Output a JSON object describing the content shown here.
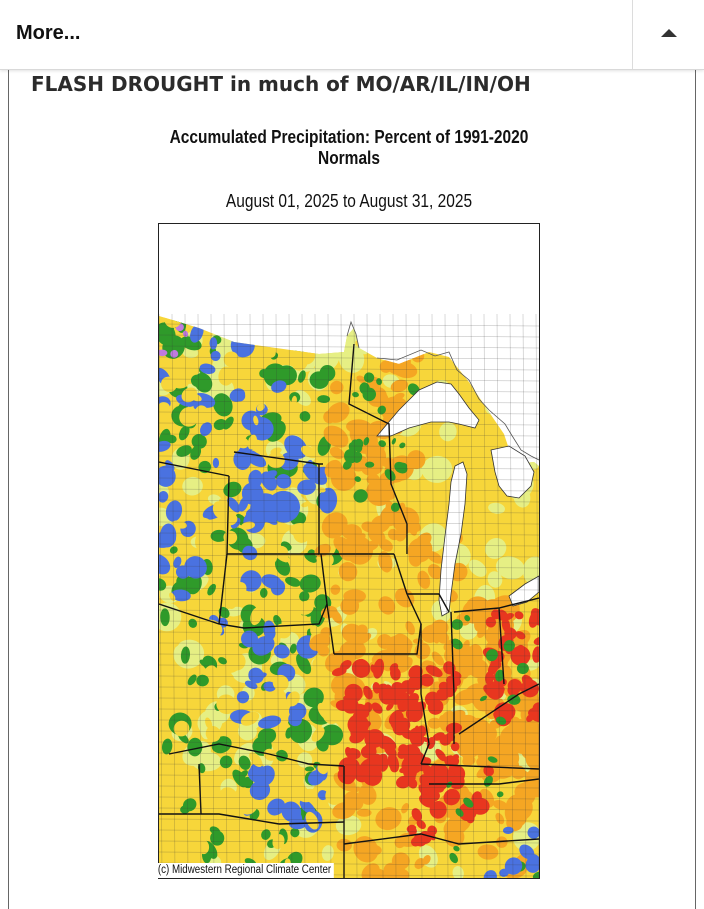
{
  "topbar": {
    "more_label": "More...",
    "toggle_icon": "caret-up-icon"
  },
  "post": {
    "title": "FLASH DROUGHT in much of MO/AR/IL/IN/OH"
  },
  "map": {
    "title": "Accumulated Precipitation: Percent of 1991-2020 Normals",
    "subtitle": "August 01, 2025 to August 31, 2025",
    "credit": "(c) Midwestern Regional Climate Center",
    "colors": {
      "very_dry": "#e8361f",
      "dry": "#f5a623",
      "slightly_dry": "#f7d63a",
      "near_normal": "#e6ef84",
      "wet": "#2f9a2a",
      "very_wet": "#4a72e0",
      "extreme_wet": "#c07ae0",
      "lake": "#ffffff"
    }
  }
}
